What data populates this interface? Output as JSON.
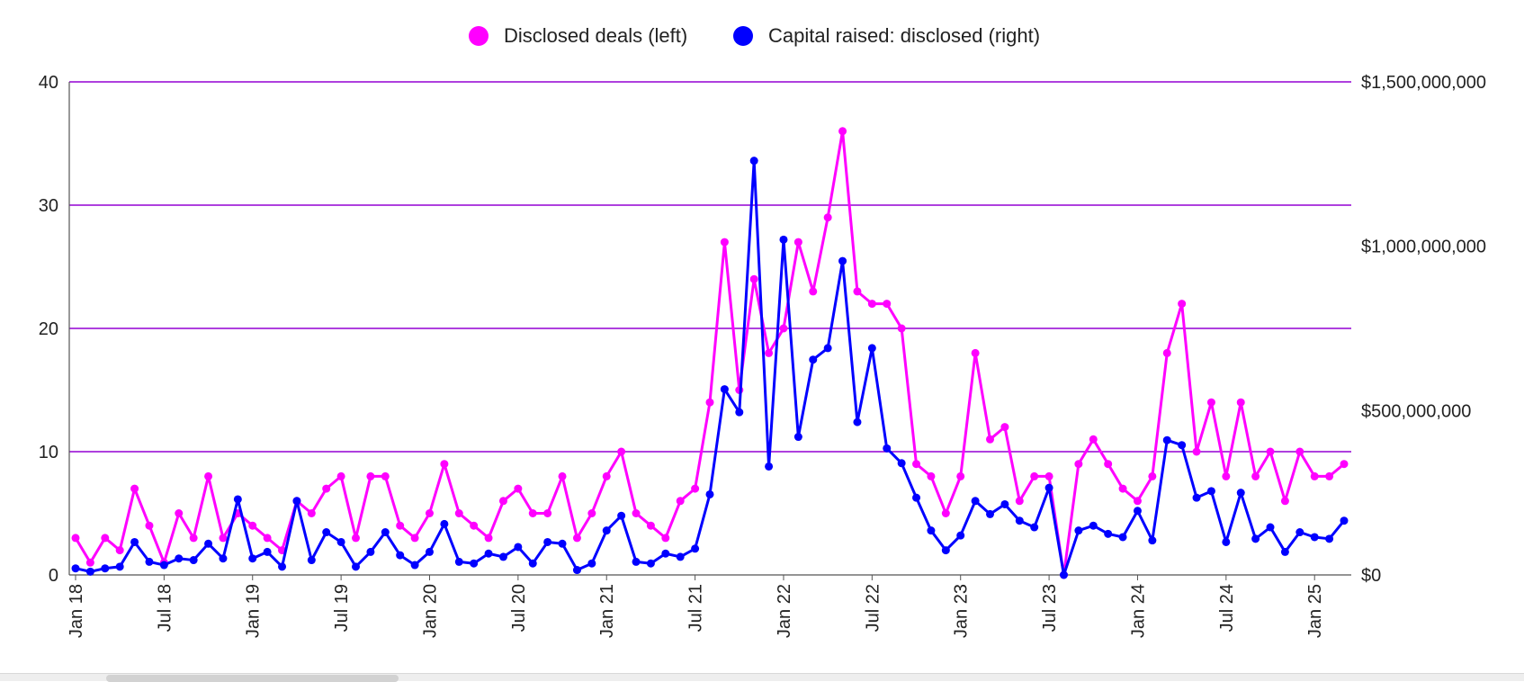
{
  "chart_data": {
    "type": "line",
    "title": "",
    "legend": [
      {
        "name": "Disclosed deals (left)",
        "color": "#ff00ff"
      },
      {
        "name": "Capital raised: disclosed (right)",
        "color": "#0000ff"
      }
    ],
    "x_ticks": [
      "Jan 18",
      "Jul 18",
      "Jan 19",
      "Jul 19",
      "Jan 20",
      "Jul 20",
      "Jan 21",
      "Jul 21",
      "Jan 22",
      "Jul 22",
      "Jan 23",
      "Jul 23",
      "Jan 24",
      "Jul 24",
      "Jan 25"
    ],
    "left_axis": {
      "min": 0,
      "max": 40,
      "ticks": [
        "0",
        "10",
        "20",
        "30",
        "40"
      ]
    },
    "right_axis": {
      "min": 0,
      "max": 1500000000,
      "ticks": [
        "$0",
        "$500,000,000",
        "$1,000,000,000",
        "$1,500,000,000"
      ]
    },
    "series": [
      {
        "name": "Disclosed deals (left)",
        "axis": "left",
        "values": [
          3,
          1,
          3,
          2,
          7,
          4,
          1,
          5,
          3,
          8,
          3,
          5,
          4,
          3,
          2,
          6,
          5,
          7,
          8,
          3,
          8,
          8,
          4,
          3,
          5,
          9,
          5,
          4,
          3,
          6,
          7,
          5,
          5,
          8,
          3,
          5,
          8,
          10,
          5,
          4,
          3,
          6,
          7,
          14,
          27,
          15,
          24,
          18,
          20,
          27,
          23,
          29,
          36,
          23,
          22,
          22,
          20,
          9,
          8,
          5,
          8,
          18,
          11,
          12,
          6,
          8,
          8,
          0,
          9,
          11,
          9,
          7,
          6,
          8,
          18,
          22,
          10,
          14,
          8,
          14,
          8,
          10,
          6,
          10,
          8,
          8,
          9
        ]
      },
      {
        "name": "Capital raised: disclosed (right)",
        "axis": "right",
        "values": [
          20000000,
          10000000,
          20000000,
          25000000,
          100000000,
          40000000,
          30000000,
          50000000,
          45000000,
          95000000,
          50000000,
          230000000,
          50000000,
          70000000,
          25000000,
          225000000,
          45000000,
          130000000,
          100000000,
          25000000,
          70000000,
          130000000,
          60000000,
          30000000,
          70000000,
          155000000,
          40000000,
          35000000,
          65000000,
          55000000,
          85000000,
          35000000,
          100000000,
          95000000,
          15000000,
          35000000,
          135000000,
          180000000,
          40000000,
          35000000,
          65000000,
          55000000,
          80000000,
          245000000,
          565000000,
          495000000,
          1260000000,
          330000000,
          1020000000,
          420000000,
          655000000,
          690000000,
          955000000,
          465000000,
          690000000,
          385000000,
          340000000,
          235000000,
          135000000,
          75000000,
          120000000,
          225000000,
          185000000,
          215000000,
          165000000,
          145000000,
          265000000,
          0,
          135000000,
          150000000,
          125000000,
          115000000,
          195000000,
          105000000,
          410000000,
          395000000,
          235000000,
          255000000,
          100000000,
          250000000,
          110000000,
          145000000,
          70000000,
          130000000,
          115000000,
          110000000,
          165000000
        ]
      }
    ]
  }
}
